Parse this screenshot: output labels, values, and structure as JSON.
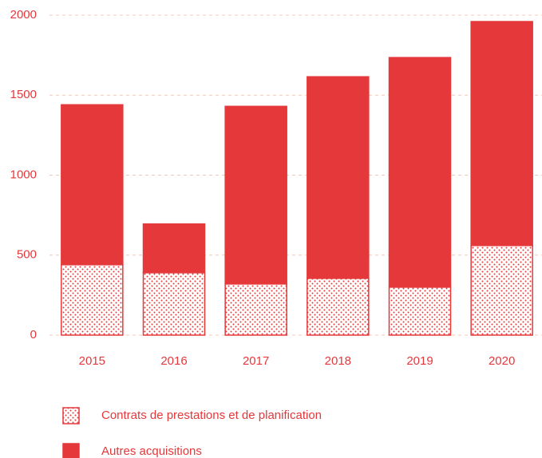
{
  "chart_data": {
    "type": "bar",
    "stacked": true,
    "categories": [
      "2015",
      "2016",
      "2017",
      "2018",
      "2019",
      "2020"
    ],
    "series": [
      {
        "name": "Contrats de prestations et de planification",
        "color": "#e5383b",
        "pattern": "dots",
        "values": [
          440,
          390,
          320,
          355,
          300,
          560
        ]
      },
      {
        "name": "Autres acquisitions",
        "color": "#e5383b",
        "values": [
          1000,
          305,
          1110,
          1260,
          1435,
          1400
        ]
      }
    ],
    "ylim": [
      0,
      2000
    ],
    "yticks": [
      0,
      500,
      1000,
      1500,
      2000
    ],
    "grid": true
  }
}
